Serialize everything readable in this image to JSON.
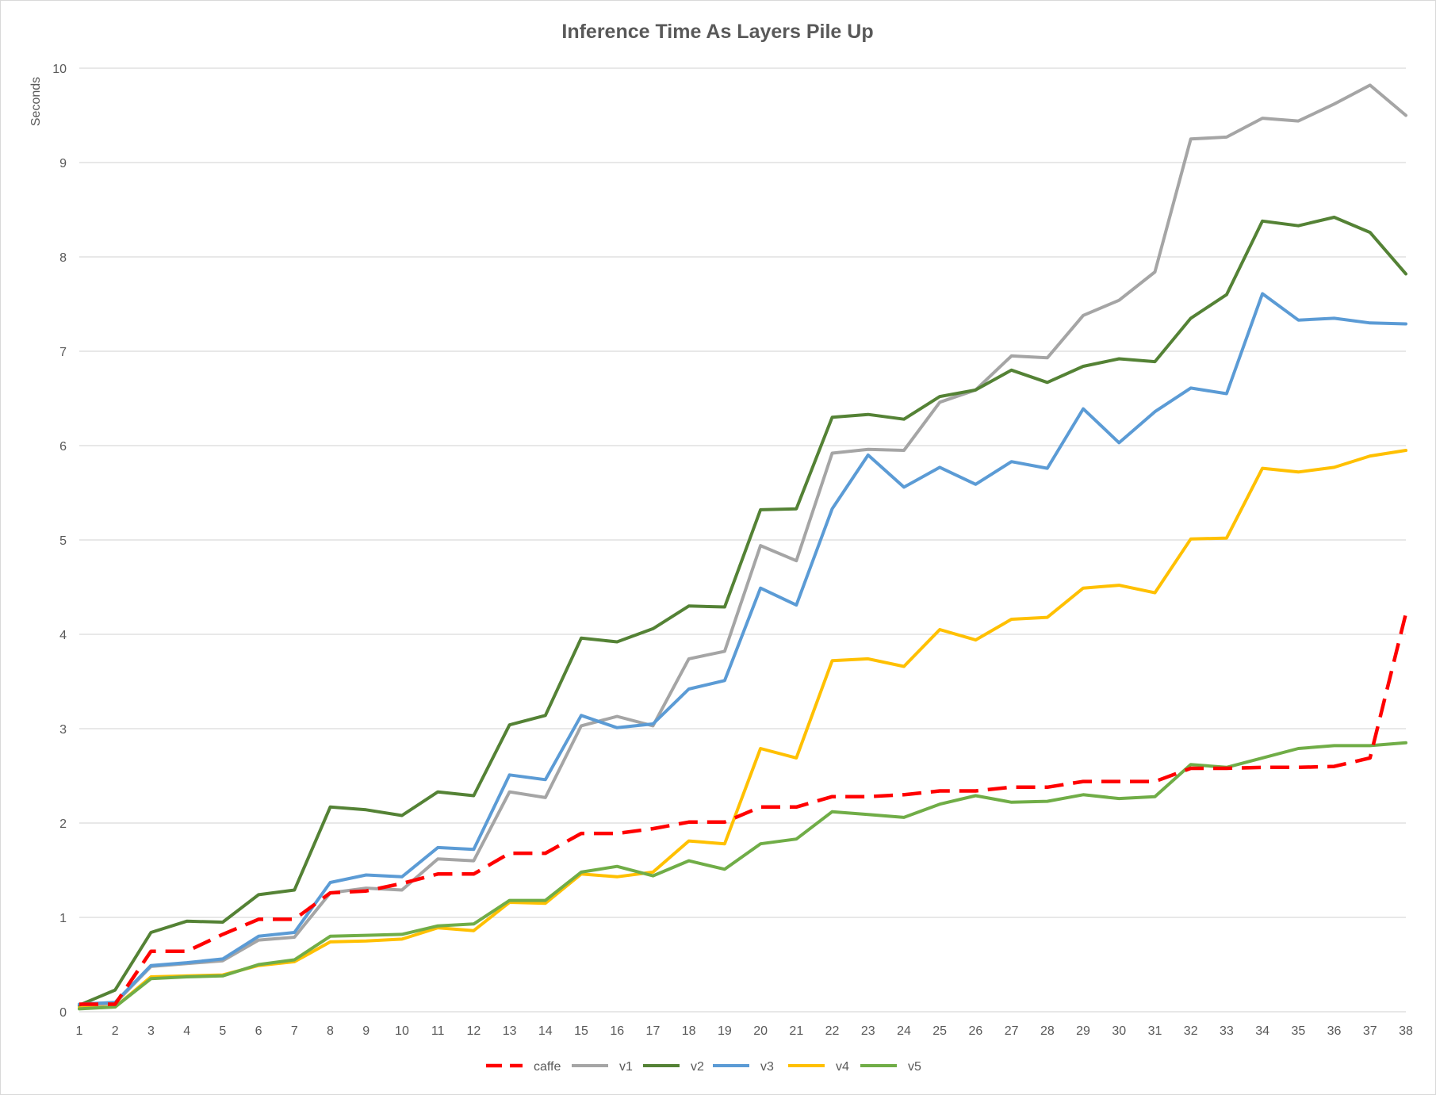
{
  "chart_data": {
    "type": "line",
    "title": "Inference Time As Layers Pile Up",
    "xlabel": "",
    "ylabel": "Seconds",
    "ylim": [
      0,
      10
    ],
    "yticks": [
      0,
      1,
      2,
      3,
      4,
      5,
      6,
      7,
      8,
      9,
      10
    ],
    "grid": true,
    "legend_position": "bottom",
    "x": [
      1,
      2,
      3,
      4,
      5,
      6,
      7,
      8,
      9,
      10,
      11,
      12,
      13,
      14,
      15,
      16,
      17,
      18,
      19,
      20,
      21,
      22,
      23,
      24,
      25,
      26,
      27,
      28,
      29,
      30,
      31,
      32,
      33,
      34,
      35,
      36,
      37,
      38
    ],
    "series": [
      {
        "name": "caffe",
        "color": "#ff0000",
        "dashed": true,
        "values": [
          0.08,
          0.08,
          0.64,
          0.64,
          0.82,
          0.98,
          0.98,
          1.26,
          1.28,
          1.36,
          1.46,
          1.46,
          1.68,
          1.68,
          1.89,
          1.89,
          1.94,
          2.01,
          2.01,
          2.17,
          2.17,
          2.28,
          2.28,
          2.3,
          2.34,
          2.34,
          2.38,
          2.38,
          2.44,
          2.44,
          2.44,
          2.58,
          2.58,
          2.59,
          2.59,
          2.6,
          2.69,
          4.22
        ]
      },
      {
        "name": "v1",
        "color": "#a5a5a5",
        "dashed": false,
        "values": [
          0.06,
          0.09,
          0.48,
          0.51,
          0.54,
          0.76,
          0.79,
          1.26,
          1.31,
          1.29,
          1.62,
          1.6,
          2.33,
          2.27,
          3.03,
          3.13,
          3.03,
          3.74,
          3.82,
          4.94,
          4.78,
          5.92,
          5.96,
          5.95,
          6.46,
          6.59,
          6.95,
          6.93,
          7.38,
          7.54,
          7.84,
          9.25,
          9.27,
          9.47,
          9.44,
          9.62,
          9.82,
          9.5
        ]
      },
      {
        "name": "v2",
        "color": "#548235",
        "dashed": false,
        "values": [
          0.07,
          0.23,
          0.84,
          0.96,
          0.95,
          1.24,
          1.29,
          2.17,
          2.14,
          2.08,
          2.33,
          2.29,
          3.04,
          3.14,
          3.96,
          3.92,
          4.06,
          4.3,
          4.29,
          5.32,
          5.33,
          6.3,
          6.33,
          6.28,
          6.52,
          6.59,
          6.8,
          6.67,
          6.84,
          6.92,
          6.89,
          7.35,
          7.6,
          8.38,
          8.33,
          8.42,
          8.26,
          7.82
        ]
      },
      {
        "name": "v3",
        "color": "#5b9bd5",
        "dashed": false,
        "values": [
          0.08,
          0.1,
          0.49,
          0.52,
          0.56,
          0.8,
          0.84,
          1.37,
          1.45,
          1.43,
          1.74,
          1.72,
          2.51,
          2.46,
          3.14,
          3.01,
          3.05,
          3.42,
          3.51,
          4.49,
          4.31,
          5.33,
          5.9,
          5.56,
          5.77,
          5.59,
          5.83,
          5.76,
          6.39,
          6.03,
          6.36,
          6.61,
          6.55,
          7.61,
          7.33,
          7.35,
          7.3,
          7.29
        ]
      },
      {
        "name": "v4",
        "color": "#ffc000",
        "dashed": false,
        "values": [
          0.04,
          0.05,
          0.37,
          0.38,
          0.39,
          0.49,
          0.53,
          0.74,
          0.75,
          0.77,
          0.89,
          0.86,
          1.16,
          1.15,
          1.46,
          1.43,
          1.48,
          1.81,
          1.78,
          2.79,
          2.69,
          3.72,
          3.74,
          3.66,
          4.05,
          3.94,
          4.16,
          4.18,
          4.49,
          4.52,
          4.44,
          5.01,
          5.02,
          5.76,
          5.72,
          5.77,
          5.89,
          5.95
        ]
      },
      {
        "name": "v5",
        "color": "#70ad47",
        "dashed": false,
        "values": [
          0.03,
          0.05,
          0.35,
          0.37,
          0.38,
          0.5,
          0.55,
          0.8,
          0.81,
          0.82,
          0.91,
          0.93,
          1.18,
          1.18,
          1.48,
          1.54,
          1.44,
          1.6,
          1.51,
          1.78,
          1.83,
          2.12,
          2.09,
          2.06,
          2.2,
          2.29,
          2.22,
          2.23,
          2.3,
          2.26,
          2.28,
          2.62,
          2.59,
          2.69,
          2.79,
          2.82,
          2.82,
          2.85
        ]
      }
    ]
  }
}
